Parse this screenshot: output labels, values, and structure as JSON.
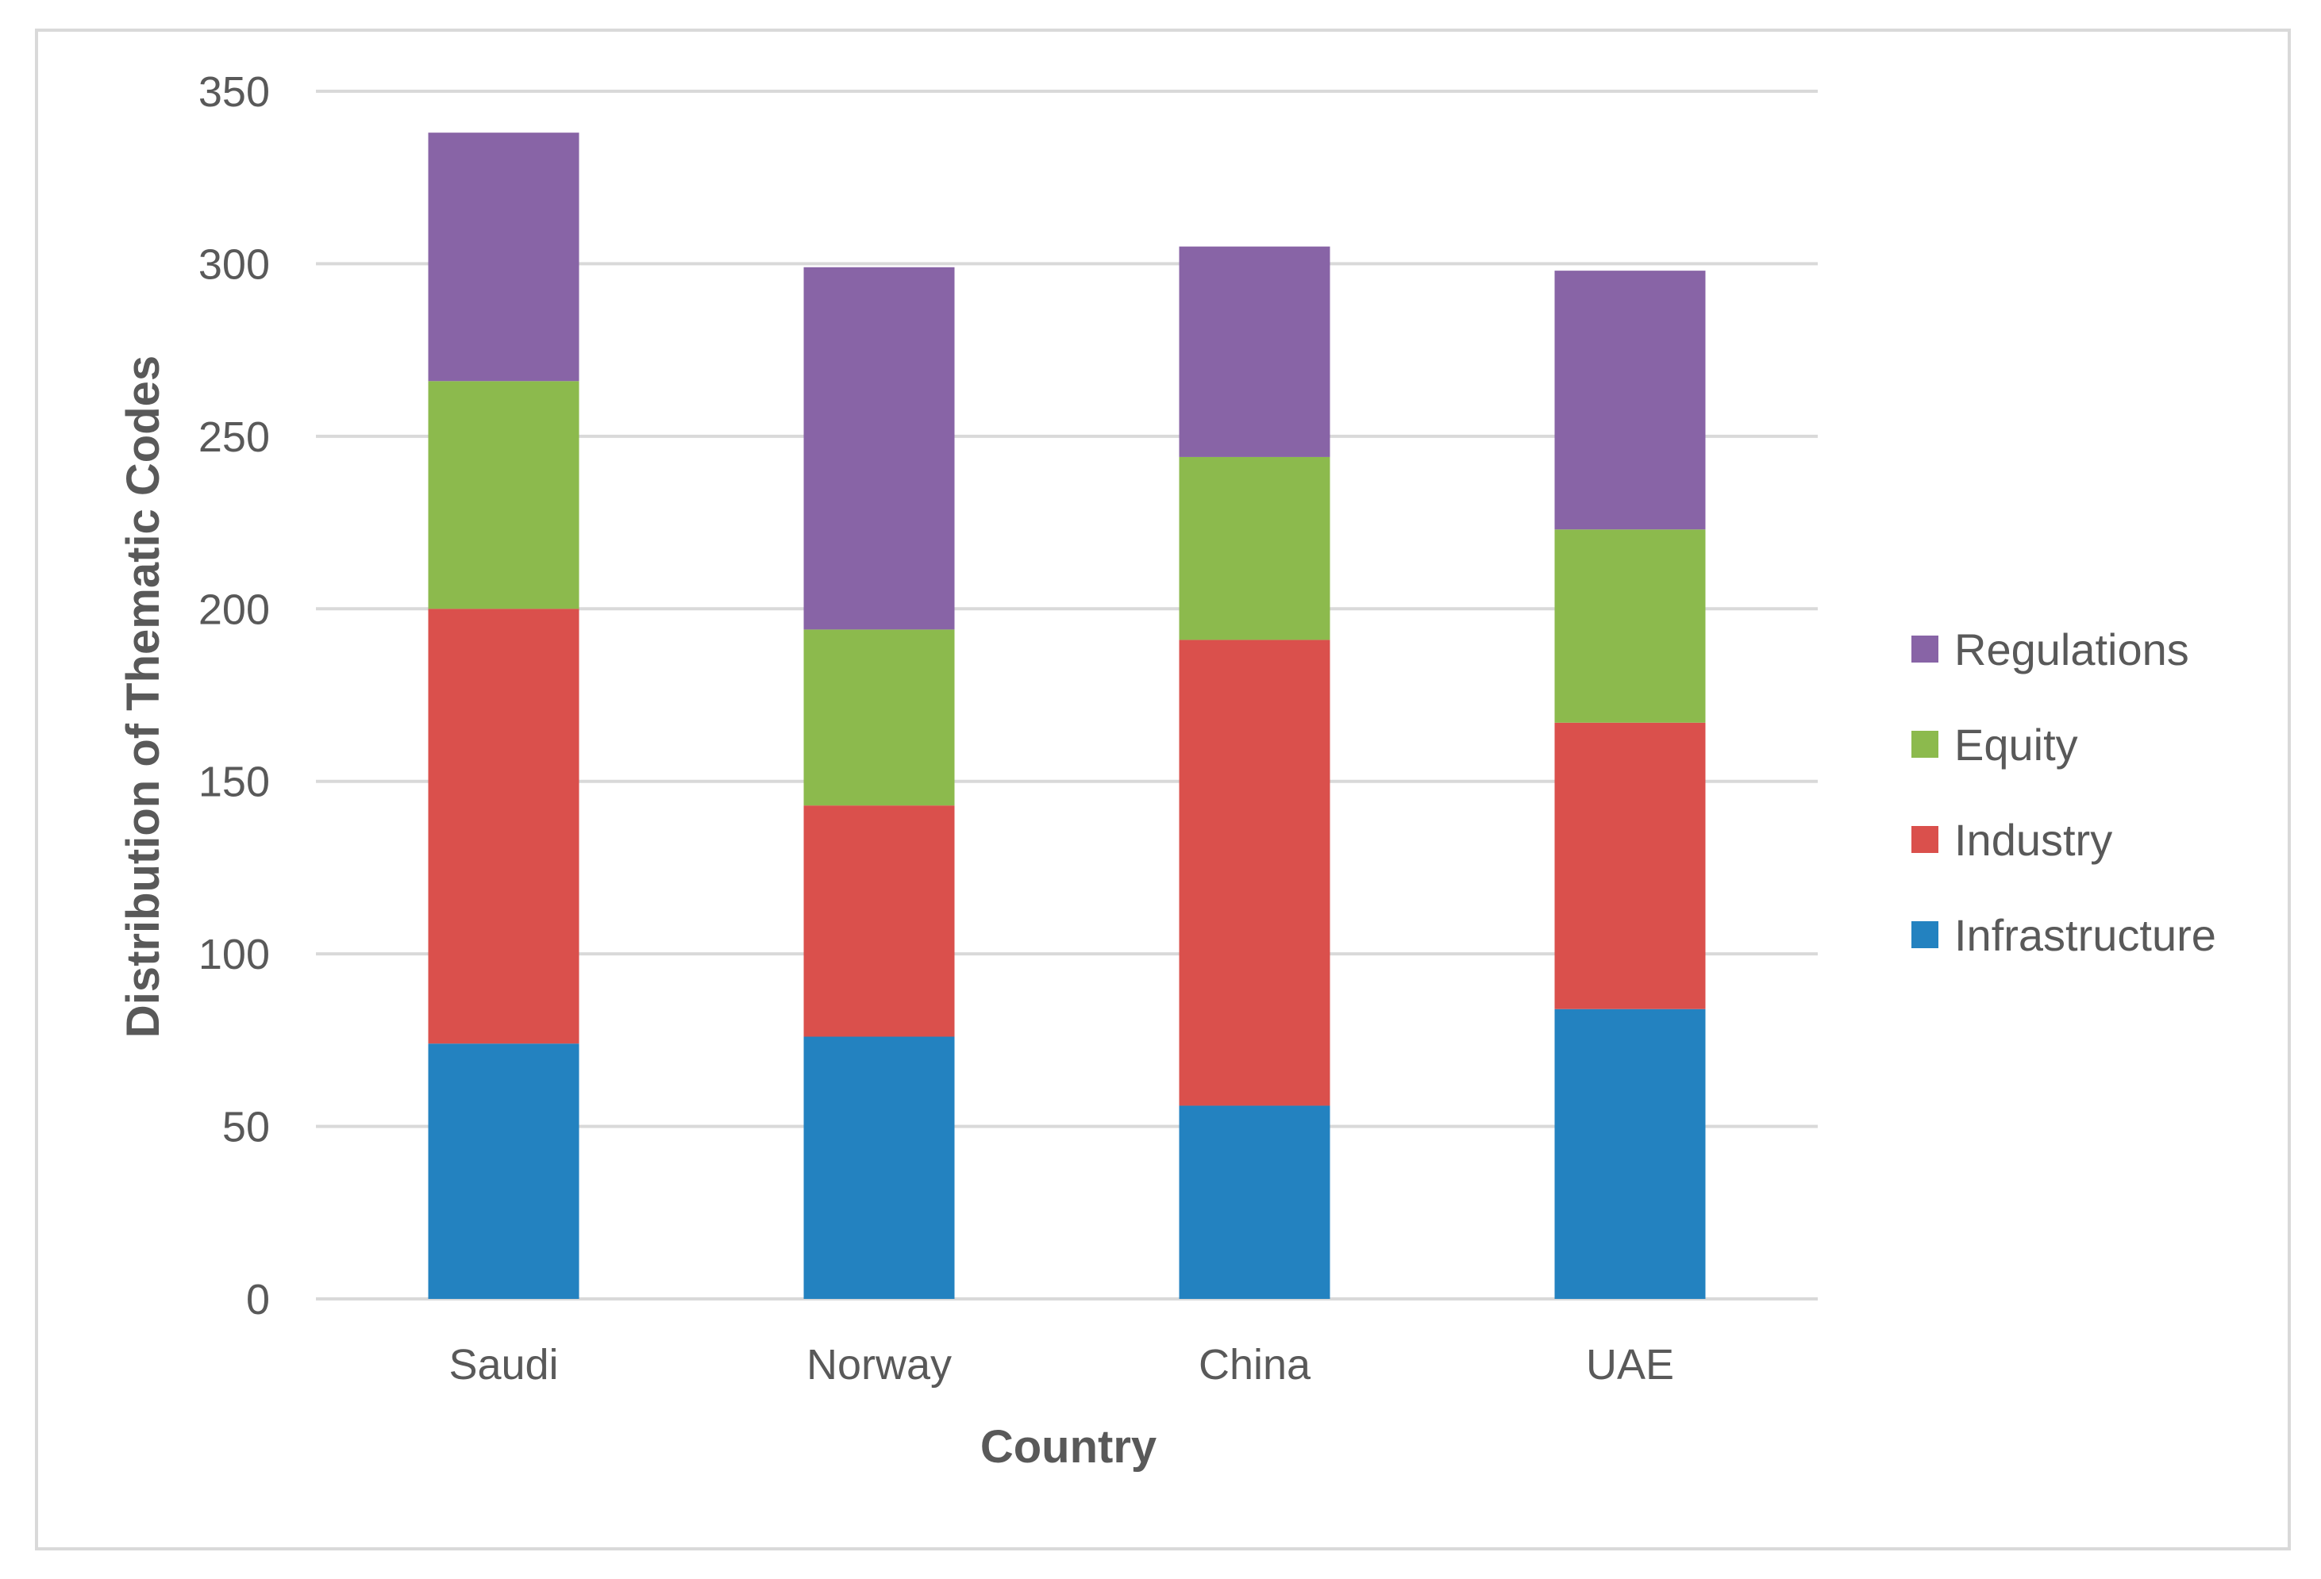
{
  "chart_data": {
    "type": "bar",
    "stacked": true,
    "title": "",
    "xlabel": "Country",
    "ylabel": "Distribution of Thematic Codes",
    "categories": [
      "Saudi",
      "Norway",
      "China",
      "UAE"
    ],
    "series": [
      {
        "name": "Infrastructure",
        "color": "#2382c0",
        "values": [
          74,
          76,
          56,
          84
        ]
      },
      {
        "name": "Industry",
        "color": "#da504c",
        "values": [
          126,
          67,
          135,
          83
        ]
      },
      {
        "name": "Equity",
        "color": "#8cba4d",
        "values": [
          66,
          51,
          53,
          56
        ]
      },
      {
        "name": "Regulations",
        "color": "#8864a6",
        "values": [
          72,
          105,
          61,
          75
        ]
      }
    ],
    "ylim": [
      0,
      350
    ],
    "yticks": [
      "0",
      "50",
      "100",
      "150",
      "200",
      "250",
      "300",
      "350"
    ],
    "grid": true,
    "legend_position": "right",
    "legend_order": [
      "Regulations",
      "Equity",
      "Industry",
      "Infrastructure"
    ]
  }
}
